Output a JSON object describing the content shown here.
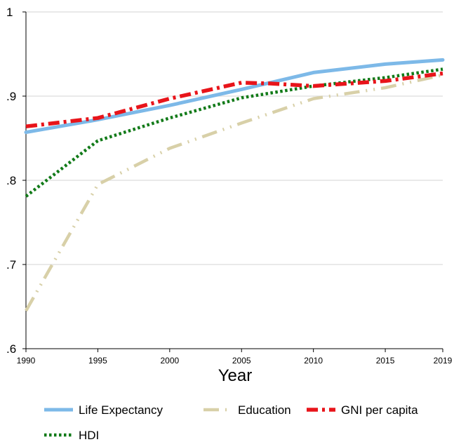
{
  "chart_data": {
    "type": "line",
    "title": "",
    "xlabel": "Year",
    "ylabel": "",
    "x_ticks": [
      "1990",
      "1995",
      "2000",
      "2005",
      "2010",
      "2015",
      "2019"
    ],
    "y_ticks": [
      "1",
      ".9",
      ".8",
      ".7",
      ".6"
    ],
    "xlim": [
      1990,
      2019
    ],
    "ylim": [
      0.6,
      1.0
    ],
    "grid": "horizontal",
    "legend_position": "bottom",
    "series": [
      {
        "name": "Life Expectancy",
        "color": "#7db9e8",
        "style": "solid",
        "x": [
          1990,
          1995,
          2000,
          2005,
          2010,
          2015,
          2019
        ],
        "values": [
          0.857,
          0.872,
          0.889,
          0.908,
          0.928,
          0.938,
          0.943
        ]
      },
      {
        "name": "Education",
        "color": "#d8d0a8",
        "style": "dash",
        "x": [
          1990,
          1995,
          2000,
          2005,
          2010,
          2015,
          2019
        ],
        "values": [
          0.645,
          0.795,
          0.838,
          0.868,
          0.897,
          0.91,
          0.925
        ]
      },
      {
        "name": "GNI per capita",
        "color": "#e8141a",
        "style": "dash-dot",
        "x": [
          1990,
          1995,
          2000,
          2005,
          2007,
          2010,
          2015,
          2019
        ],
        "values": [
          0.864,
          0.874,
          0.897,
          0.916,
          0.915,
          0.912,
          0.918,
          0.927
        ]
      },
      {
        "name": "HDI",
        "color": "#117a18",
        "style": "dot",
        "x": [
          1990,
          1995,
          2000,
          2005,
          2010,
          2015,
          2019
        ],
        "values": [
          0.781,
          0.847,
          0.874,
          0.898,
          0.912,
          0.922,
          0.932
        ]
      }
    ]
  }
}
